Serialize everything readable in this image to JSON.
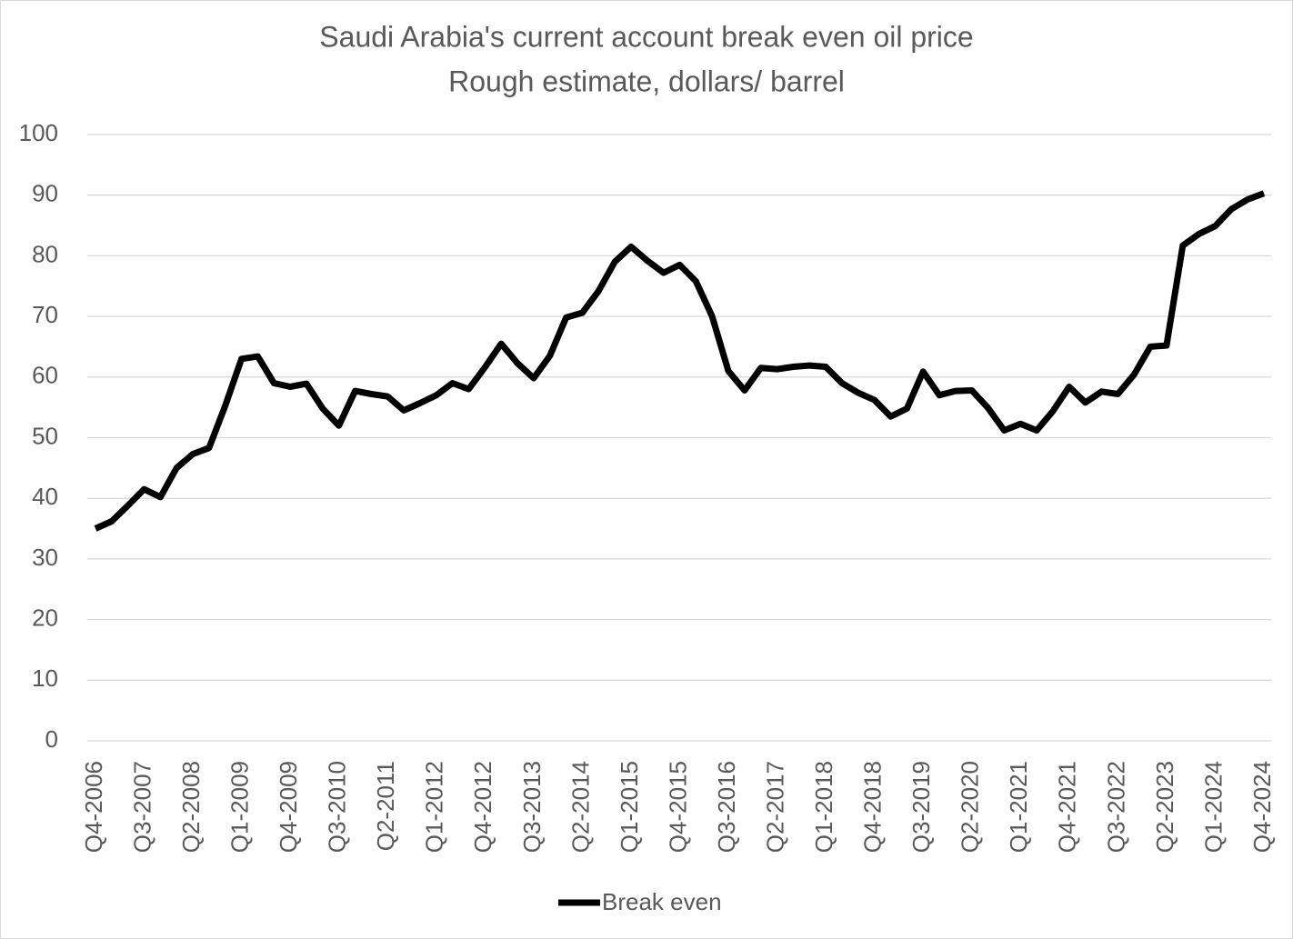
{
  "chart_data": {
    "type": "line",
    "title": "Saudi Arabia's current account break even oil price",
    "subtitle": "Rough estimate, dollars/ barrel",
    "categories": [
      "Q4-2006",
      null,
      null,
      "Q3-2007",
      null,
      null,
      "Q2-2008",
      null,
      null,
      "Q1-2009",
      null,
      null,
      "Q4-2009",
      null,
      null,
      "Q3-2010",
      null,
      null,
      "Q2-2011",
      null,
      null,
      "Q1-2012",
      null,
      null,
      "Q4-2012",
      null,
      null,
      "Q3-2013",
      null,
      null,
      "Q2-2014",
      null,
      null,
      "Q1-2015",
      null,
      null,
      "Q4-2015",
      null,
      null,
      "Q3-2016",
      null,
      null,
      "Q2-2017",
      null,
      null,
      "Q1-2018",
      null,
      null,
      "Q4-2018",
      null,
      null,
      "Q3-2019",
      null,
      null,
      "Q2-2020",
      null,
      null,
      "Q1-2021",
      null,
      null,
      "Q4-2021",
      null,
      null,
      "Q3-2022",
      null,
      null,
      "Q2-2023",
      null,
      null,
      "Q1-2024",
      null,
      null,
      "Q4-2024"
    ],
    "series": [
      {
        "name": "Break even",
        "color": "#000000",
        "values": [
          35,
          36.2,
          38.8,
          41.5,
          40.2,
          45,
          47.3,
          48.3,
          55.3,
          63,
          63.4,
          59,
          58.4,
          58.9,
          54.8,
          52,
          57.7,
          57.2,
          56.8,
          54.5,
          55.7,
          57,
          59,
          58,
          61.6,
          65.5,
          62.3,
          59.8,
          63.5,
          69.8,
          70.6,
          74.2,
          79,
          81.5,
          79.2,
          77.2,
          78.5,
          75.8,
          70,
          61,
          57.8,
          61.5,
          61.3,
          61.7,
          61.9,
          61.7,
          59,
          57.4,
          56.2,
          53.5,
          54.8,
          60.9,
          57,
          57.7,
          57.8,
          54.9,
          51.2,
          52.3,
          51.2,
          54.4,
          58.4,
          55.8,
          57.6,
          57.2,
          60.4,
          65,
          65.2,
          81.7,
          83.6,
          84.9,
          87.7,
          89.3,
          90.3
        ]
      }
    ],
    "ylim": [
      0,
      100
    ],
    "yticks": [
      0,
      10,
      20,
      30,
      40,
      50,
      60,
      70,
      80,
      90,
      100
    ],
    "grid": true,
    "legend": "bottom"
  }
}
